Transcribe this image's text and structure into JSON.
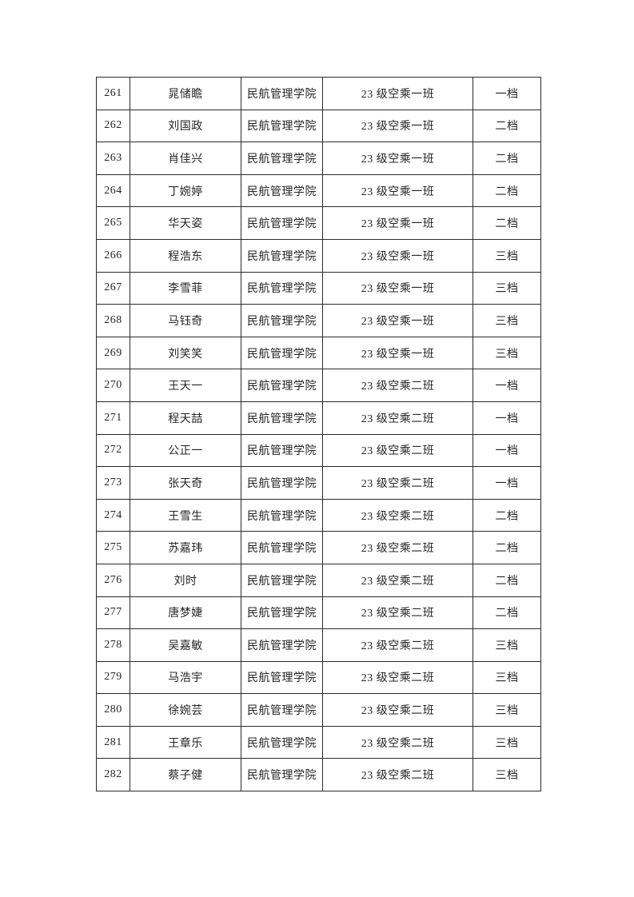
{
  "page": {
    "background": "#ffffff",
    "text_color": "#262626",
    "border_color": "#2b2b2b"
  },
  "table": {
    "rows": [
      {
        "no": "261",
        "name": "晁储瞻",
        "college": "民航管理学院",
        "class_name": "23 级空乘一班",
        "tier": "一档"
      },
      {
        "no": "262",
        "name": "刘国政",
        "college": "民航管理学院",
        "class_name": "23 级空乘一班",
        "tier": "二档"
      },
      {
        "no": "263",
        "name": "肖佳兴",
        "college": "民航管理学院",
        "class_name": "23 级空乘一班",
        "tier": "二档"
      },
      {
        "no": "264",
        "name": "丁婉婷",
        "college": "民航管理学院",
        "class_name": "23 级空乘一班",
        "tier": "二档"
      },
      {
        "no": "265",
        "name": "华天姿",
        "college": "民航管理学院",
        "class_name": "23 级空乘一班",
        "tier": "二档"
      },
      {
        "no": "266",
        "name": "程浩东",
        "college": "民航管理学院",
        "class_name": "23 级空乘一班",
        "tier": "三档"
      },
      {
        "no": "267",
        "name": "李雪菲",
        "college": "民航管理学院",
        "class_name": "23 级空乘一班",
        "tier": "三档"
      },
      {
        "no": "268",
        "name": "马钰奇",
        "college": "民航管理学院",
        "class_name": "23 级空乘一班",
        "tier": "三档"
      },
      {
        "no": "269",
        "name": "刘笑笑",
        "college": "民航管理学院",
        "class_name": "23 级空乘一班",
        "tier": "三档"
      },
      {
        "no": "270",
        "name": "王天一",
        "college": "民航管理学院",
        "class_name": "23 级空乘二班",
        "tier": "一档"
      },
      {
        "no": "271",
        "name": "程天喆",
        "college": "民航管理学院",
        "class_name": "23 级空乘二班",
        "tier": "一档"
      },
      {
        "no": "272",
        "name": "公正一",
        "college": "民航管理学院",
        "class_name": "23 级空乘二班",
        "tier": "一档"
      },
      {
        "no": "273",
        "name": "张天奇",
        "college": "民航管理学院",
        "class_name": "23 级空乘二班",
        "tier": "一档"
      },
      {
        "no": "274",
        "name": "王雪生",
        "college": "民航管理学院",
        "class_name": "23 级空乘二班",
        "tier": "二档"
      },
      {
        "no": "275",
        "name": "苏嘉玮",
        "college": "民航管理学院",
        "class_name": "23 级空乘二班",
        "tier": "二档"
      },
      {
        "no": "276",
        "name": "刘时",
        "college": "民航管理学院",
        "class_name": "23 级空乘二班",
        "tier": "二档"
      },
      {
        "no": "277",
        "name": "唐梦婕",
        "college": "民航管理学院",
        "class_name": "23 级空乘二班",
        "tier": "二档"
      },
      {
        "no": "278",
        "name": "吴嘉敏",
        "college": "民航管理学院",
        "class_name": "23 级空乘二班",
        "tier": "三档"
      },
      {
        "no": "279",
        "name": "马浩宇",
        "college": "民航管理学院",
        "class_name": "23 级空乘二班",
        "tier": "三档"
      },
      {
        "no": "280",
        "name": "徐婉芸",
        "college": "民航管理学院",
        "class_name": "23 级空乘二班",
        "tier": "三档"
      },
      {
        "no": "281",
        "name": "王章乐",
        "college": "民航管理学院",
        "class_name": "23 级空乘二班",
        "tier": "三档"
      },
      {
        "no": "282",
        "name": "蔡子健",
        "college": "民航管理学院",
        "class_name": "23 级空乘二班",
        "tier": "三档"
      }
    ]
  }
}
